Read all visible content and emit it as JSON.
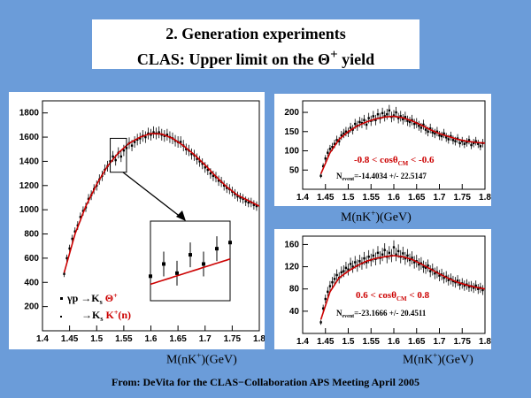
{
  "title": {
    "line1": "2. Generation experiments",
    "line2_prefix": "CLAS: Upper limit on the ",
    "line2_symbol": "Θ",
    "line2_sup": "+",
    "line2_suffix": " yield"
  },
  "footer": "From: DeVita for the CLAS−Collaboration APS Meeting April 2005",
  "xlabel_left": "M(nK",
  "xlabel_sup": "+",
  "xlabel_right": ")(GeV)",
  "colors": {
    "background": "#6b9cd9",
    "fit": "#cc0000",
    "data": "#000000"
  },
  "chart_data": [
    {
      "type": "scatter",
      "title": "",
      "xlabel": "M(nK+)(GeV)",
      "ylabel": "",
      "xlim": [
        1.4,
        1.8
      ],
      "ylim": [
        0,
        1900
      ],
      "xticks": [
        "1.4",
        "1.45",
        "1.5",
        "1.55",
        "1.6",
        "1.65",
        "1.7",
        "1.75",
        "1.8"
      ],
      "yticks": [
        "200",
        "400",
        "600",
        "800",
        "1000",
        "1200",
        "1400",
        "1600",
        "1800"
      ],
      "legend": {
        "row1_prefix": "γp →K",
        "row1_sub": "s",
        "row1_particle": " Θ",
        "row1_sup": "+",
        "row2_prefix": "→K",
        "row2_sub": "s",
        "row2_particle": " K",
        "row2_sup": "+",
        "row2_suffix": "(n)"
      },
      "inset_range": [
        1.525,
        1.555
      ],
      "series": [
        {
          "x": [
            1.44,
            1.445,
            1.45,
            1.455,
            1.46,
            1.465,
            1.47,
            1.475,
            1.48,
            1.485,
            1.49,
            1.495,
            1.5,
            1.505,
            1.51,
            1.515,
            1.52,
            1.525,
            1.53,
            1.535,
            1.54,
            1.545,
            1.55,
            1.555,
            1.56,
            1.565,
            1.57,
            1.575,
            1.58,
            1.585,
            1.59,
            1.595,
            1.6,
            1.605,
            1.61,
            1.615,
            1.62,
            1.625,
            1.63,
            1.635,
            1.64,
            1.645,
            1.65,
            1.655,
            1.66,
            1.665,
            1.67,
            1.675,
            1.68,
            1.685,
            1.69,
            1.695,
            1.7,
            1.705,
            1.71,
            1.715,
            1.72,
            1.725,
            1.73,
            1.735,
            1.74,
            1.745,
            1.75,
            1.755,
            1.76,
            1.765,
            1.77,
            1.775,
            1.78,
            1.785,
            1.79,
            1.795
          ],
          "y": [
            470,
            600,
            680,
            760,
            820,
            870,
            940,
            990,
            1020,
            1090,
            1120,
            1170,
            1200,
            1250,
            1280,
            1330,
            1360,
            1400,
            1440,
            1410,
            1470,
            1440,
            1490,
            1510,
            1550,
            1530,
            1560,
            1580,
            1590,
            1610,
            1600,
            1630,
            1620,
            1640,
            1630,
            1640,
            1620,
            1610,
            1620,
            1600,
            1590,
            1570,
            1560,
            1560,
            1530,
            1500,
            1490,
            1460,
            1450,
            1420,
            1400,
            1380,
            1350,
            1330,
            1300,
            1280,
            1270,
            1240,
            1230,
            1200,
            1180,
            1170,
            1150,
            1130,
            1110,
            1100,
            1090,
            1070,
            1060,
            1060,
            1040,
            1030
          ]
        }
      ],
      "fit": {
        "x": [
          1.44,
          1.46,
          1.48,
          1.5,
          1.52,
          1.54,
          1.56,
          1.58,
          1.6,
          1.62,
          1.64,
          1.66,
          1.68,
          1.7,
          1.72,
          1.74,
          1.76,
          1.78,
          1.8
        ],
        "y": [
          480,
          800,
          1030,
          1210,
          1360,
          1470,
          1550,
          1600,
          1630,
          1625,
          1590,
          1530,
          1455,
          1370,
          1275,
          1190,
          1120,
          1075,
          1030
        ]
      }
    },
    {
      "type": "scatter",
      "title": "",
      "xlabel": "M(nK+)(GeV)",
      "ylabel": "",
      "xlim": [
        1.4,
        1.8
      ],
      "ylim": [
        0,
        230
      ],
      "xticks": [
        "1.4",
        "1.45",
        "1.5",
        "1.55",
        "1.6",
        "1.65",
        "1.7",
        "1.75",
        "1.8"
      ],
      "yticks": [
        "50",
        "100",
        "150",
        "200"
      ],
      "annotation": {
        "range_left": "-0.8 < cos",
        "range_theta": "θ",
        "range_sub": "CM",
        "range_right": " < -0.6",
        "n_label": "N",
        "n_sub": "event",
        "n_value": "=-14.4034 +/- 22.5147"
      },
      "series": [
        {
          "x": [
            1.44,
            1.445,
            1.45,
            1.455,
            1.46,
            1.465,
            1.47,
            1.475,
            1.48,
            1.485,
            1.49,
            1.495,
            1.5,
            1.505,
            1.51,
            1.515,
            1.52,
            1.525,
            1.53,
            1.535,
            1.54,
            1.545,
            1.55,
            1.555,
            1.56,
            1.565,
            1.57,
            1.575,
            1.58,
            1.585,
            1.59,
            1.595,
            1.6,
            1.605,
            1.61,
            1.615,
            1.62,
            1.625,
            1.63,
            1.635,
            1.64,
            1.645,
            1.65,
            1.655,
            1.66,
            1.665,
            1.67,
            1.675,
            1.68,
            1.685,
            1.69,
            1.695,
            1.7,
            1.705,
            1.71,
            1.715,
            1.72,
            1.725,
            1.73,
            1.735,
            1.74,
            1.745,
            1.75,
            1.755,
            1.76,
            1.765,
            1.77,
            1.775,
            1.78,
            1.785,
            1.79,
            1.795
          ],
          "y": [
            35,
            60,
            80,
            95,
            105,
            110,
            118,
            128,
            125,
            140,
            145,
            150,
            148,
            160,
            155,
            170,
            165,
            175,
            172,
            180,
            168,
            185,
            178,
            190,
            180,
            195,
            185,
            198,
            190,
            195,
            205,
            188,
            192,
            200,
            185,
            190,
            182,
            188,
            178,
            175,
            180,
            170,
            172,
            165,
            160,
            168,
            155,
            150,
            158,
            148,
            145,
            150,
            140,
            138,
            145,
            135,
            130,
            138,
            128,
            125,
            132,
            120,
            125,
            118,
            122,
            128,
            115,
            120,
            125,
            118,
            112,
            120
          ]
        }
      ],
      "fit": {
        "x": [
          1.44,
          1.46,
          1.48,
          1.5,
          1.52,
          1.54,
          1.56,
          1.58,
          1.6,
          1.62,
          1.64,
          1.66,
          1.68,
          1.7,
          1.72,
          1.74,
          1.76,
          1.78,
          1.8
        ],
        "y": [
          40,
          95,
          130,
          150,
          165,
          175,
          183,
          188,
          190,
          186,
          178,
          167,
          155,
          145,
          137,
          130,
          125,
          122,
          120
        ]
      }
    },
    {
      "type": "scatter",
      "title": "",
      "xlabel": "M(nK+)(GeV)",
      "ylabel": "",
      "xlim": [
        1.4,
        1.8
      ],
      "ylim": [
        0,
        175
      ],
      "xticks": [
        "1.4",
        "1.45",
        "1.5",
        "1.55",
        "1.6",
        "1.65",
        "1.7",
        "1.75",
        "1.8"
      ],
      "yticks": [
        "40",
        "80",
        "120",
        "160"
      ],
      "annotation": {
        "range_left": "0.6 < cos",
        "range_theta": "θ",
        "range_sub": "CM",
        "range_right": " < 0.8",
        "n_label": "N",
        "n_sub": "event",
        "n_value": "=-23.1666 +/- 20.4511"
      },
      "series": [
        {
          "x": [
            1.44,
            1.445,
            1.45,
            1.455,
            1.46,
            1.465,
            1.47,
            1.475,
            1.48,
            1.485,
            1.49,
            1.495,
            1.5,
            1.505,
            1.51,
            1.515,
            1.52,
            1.525,
            1.53,
            1.535,
            1.54,
            1.545,
            1.55,
            1.555,
            1.56,
            1.565,
            1.57,
            1.575,
            1.58,
            1.585,
            1.59,
            1.595,
            1.6,
            1.605,
            1.61,
            1.615,
            1.62,
            1.625,
            1.63,
            1.635,
            1.64,
            1.645,
            1.65,
            1.655,
            1.66,
            1.665,
            1.67,
            1.675,
            1.68,
            1.685,
            1.69,
            1.695,
            1.7,
            1.705,
            1.71,
            1.715,
            1.72,
            1.725,
            1.73,
            1.735,
            1.74,
            1.745,
            1.75,
            1.755,
            1.76,
            1.765,
            1.77,
            1.775,
            1.78,
            1.785,
            1.79,
            1.795
          ],
          "y": [
            20,
            45,
            62,
            75,
            85,
            92,
            98,
            105,
            100,
            110,
            112,
            118,
            115,
            125,
            120,
            128,
            122,
            130,
            126,
            135,
            128,
            138,
            132,
            140,
            134,
            145,
            136,
            142,
            150,
            138,
            145,
            140,
            155,
            142,
            148,
            138,
            144,
            135,
            140,
            132,
            136,
            128,
            130,
            124,
            126,
            120,
            118,
            122,
            112,
            115,
            108,
            110,
            104,
            106,
            100,
            102,
            96,
            98,
            94,
            92,
            95,
            88,
            90,
            86,
            88,
            84,
            85,
            82,
            86,
            80,
            82,
            78
          ]
        }
      ],
      "fit": {
        "x": [
          1.44,
          1.46,
          1.48,
          1.5,
          1.52,
          1.54,
          1.56,
          1.58,
          1.6,
          1.62,
          1.64,
          1.66,
          1.68,
          1.7,
          1.72,
          1.74,
          1.76,
          1.78,
          1.8
        ],
        "y": [
          25,
          75,
          100,
          112,
          122,
          130,
          135,
          138,
          140,
          138,
          133,
          125,
          116,
          107,
          99,
          92,
          87,
          83,
          80
        ]
      }
    }
  ]
}
